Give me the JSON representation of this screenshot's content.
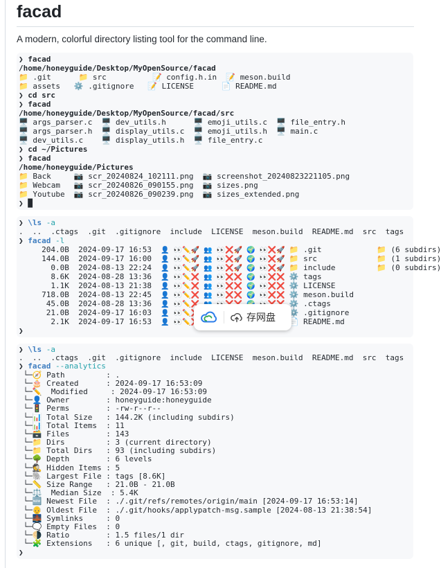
{
  "header": {
    "title": "facad",
    "tagline": "A modern, colorful directory listing tool for the command line."
  },
  "colors": {
    "command_blue": "#3f7ec0",
    "flag_teal": "#25a2ab",
    "text": "#24292f",
    "code_background": "#f7f8fa",
    "divider": "#d8dee4"
  },
  "icons": {
    "folder": "📁",
    "memo": "📝",
    "gear": "⚙️",
    "page": "📄",
    "monitor": "🖥️",
    "camera": "📷",
    "owner": "👤",
    "group": "👥",
    "others": "🌍",
    "read": "👀",
    "write": "✏️",
    "execute": "🚀",
    "denied": "❌",
    "compass": "🧭",
    "birthday-cake": "🎂",
    "traffic-light": "🚦",
    "bar-chart": "📊",
    "card-file-box": "🗃️",
    "tree": "🌳",
    "detective": "🕵️",
    "elephant": "🐘",
    "ruler": "📏",
    "scales": "⚖️",
    "new-badge": "🆕",
    "old-man": "👴",
    "bridge": "🌉",
    "speech-bubble": "🗨️",
    "half-moon": "🌗",
    "puzzle": "🧩",
    "netdisk-cloud": "☁️",
    "upload-cloud": "☁️⬆"
  },
  "overlay": {
    "save_label": "存网盘"
  },
  "blocks": [
    {
      "lines": [
        [
          {
            "c": "p",
            "t": "❯ "
          },
          {
            "c": "b",
            "t": "facad"
          }
        ],
        [
          {
            "c": "b",
            "t": "/home/honeyguide/Desktop/MyOpenSource/facad"
          }
        ],
        [
          {
            "c": "n",
            "t": "📁 .git      📁 src          📝 config.h.in  📝 meson.build"
          }
        ],
        [
          {
            "c": "n",
            "t": "📁 assets   ⚙️ .gitignore   📝 LICENSE      📄 README.md"
          }
        ],
        [
          {
            "c": "p",
            "t": "❯ "
          },
          {
            "c": "b",
            "t": "cd src"
          }
        ],
        [
          {
            "c": "p",
            "t": "❯ "
          },
          {
            "c": "b",
            "t": "facad"
          }
        ],
        [
          {
            "c": "b",
            "t": "/home/honeyguide/Desktop/MyOpenSource/facad/src"
          }
        ],
        [
          {
            "c": "n",
            "t": "🖥️ args_parser.c  🖥️ dev_utils.h      🖥️ emoji_utils.c  🖥️ file_entry.h"
          }
        ],
        [
          {
            "c": "n",
            "t": "🖥️ args_parser.h  🖥️ display_utils.c  🖥️ emoji_utils.h  🖥️ main.c"
          }
        ],
        [
          {
            "c": "n",
            "t": "🖥️ dev_utils.c    🖥️ display_utils.h  🖥️ file_entry.c"
          }
        ],
        [
          {
            "c": "p",
            "t": "❯ "
          },
          {
            "c": "b",
            "t": "cd ~/Pictures"
          }
        ],
        [
          {
            "c": "p",
            "t": "❯ "
          },
          {
            "c": "b",
            "t": "facad"
          }
        ],
        [
          {
            "c": "b",
            "t": "/home/honeyguide/Pictures"
          }
        ],
        [
          {
            "c": "n",
            "t": "📁 Back     📷 scr_20240824_102111.png  📷 screenshot_20240823221105.png"
          }
        ],
        [
          {
            "c": "n",
            "t": "📁 Webcam   📷 scr_20240826_090155.png  📷 sizes.png"
          }
        ],
        [
          {
            "c": "n",
            "t": "📁 Youtube  📷 scr_20240826_090239.png  📷 sizes_extended.png"
          }
        ],
        [
          {
            "c": "p",
            "t": "❯ "
          },
          {
            "c": "n",
            "t": "█"
          }
        ]
      ]
    },
    {
      "lines": [
        [
          {
            "c": "p",
            "t": "❯ "
          },
          {
            "c": "c",
            "t": "\\ls"
          },
          {
            "c": "n",
            "t": " "
          },
          {
            "c": "f",
            "t": "-a"
          }
        ],
        [
          {
            "c": "n",
            "t": ".  ..  .ctags  .git  .gitignore  include  LICENSE  meson.build  README.md  src  tags"
          }
        ],
        [
          {
            "c": "p",
            "t": "❯ "
          },
          {
            "c": "c",
            "t": "facad"
          },
          {
            "c": "n",
            "t": " "
          },
          {
            "c": "f",
            "t": "-l"
          }
        ],
        [
          {
            "c": "n",
            "t": "     204.0B  2024-09-17 16:53  "
          },
          {
            "c": "e",
            "t": "👤 👀✏️🚀 👥 👀❌🚀 🌍 👀❌🚀 "
          },
          {
            "c": "n",
            "t": "📁 .git            📁 (6 subdirs)"
          }
        ],
        [
          {
            "c": "n",
            "t": "     144.0B  2024-09-17 16:00  "
          },
          {
            "c": "e",
            "t": "👤 👀✏️🚀 👥 👀❌🚀 🌍 👀❌🚀 "
          },
          {
            "c": "n",
            "t": "📁 src             📁 (1 subdirs)"
          }
        ],
        [
          {
            "c": "n",
            "t": "       0.0B  2024-08-13 22:24  "
          },
          {
            "c": "e",
            "t": "👤 👀✏️🚀 👥 👀❌🚀 🌍 👀❌🚀 "
          },
          {
            "c": "n",
            "t": "📁 include         📁 (0 subdirs)"
          }
        ],
        [
          {
            "c": "n",
            "t": "       8.6K  2024-08-28 13:36  "
          },
          {
            "c": "e",
            "t": "👤 👀✏️❌ 👥 👀❌❌ 🌍 👀❌❌ "
          },
          {
            "c": "n",
            "t": "⚙️ tags"
          }
        ],
        [
          {
            "c": "n",
            "t": "       1.1K  2024-08-13 21:38  "
          },
          {
            "c": "e",
            "t": "👤 👀✏️❌ 👥 👀❌❌ 🌍 👀❌❌ "
          },
          {
            "c": "n",
            "t": "⚙️ LICENSE"
          }
        ],
        [
          {
            "c": "n",
            "t": "     718.0B  2024-08-13 22:45  "
          },
          {
            "c": "e",
            "t": "👤 👀✏️❌ 👥 👀❌❌ 🌍 👀❌❌ "
          },
          {
            "c": "n",
            "t": "⚙️ meson.build"
          }
        ],
        [
          {
            "c": "n",
            "t": "      45.0B  2024-08-28 13:36  "
          },
          {
            "c": "e",
            "t": "👤 👀✏️❌ 👥 👀❌❌ 🌍 👀❌❌ "
          },
          {
            "c": "n",
            "t": "⚙️ .ctags"
          }
        ],
        [
          {
            "c": "n",
            "t": "      21.0B  2024-09-17 16:03  "
          },
          {
            "c": "e",
            "t": "👤 👀✏️❌ 👥 👀❌❌ 🌍 👀❌❌ "
          },
          {
            "c": "n",
            "t": "⚙️ .gitignore"
          }
        ],
        [
          {
            "c": "n",
            "t": "       2.1K  2024-09-17 16:53  "
          },
          {
            "c": "e",
            "t": "👤 👀✏️❌ 👥 👀❌❌ 🌍 👀❌❌ "
          },
          {
            "c": "n",
            "t": "📄 README.md"
          }
        ],
        [
          {
            "c": "p",
            "t": "❯"
          }
        ]
      ]
    },
    {
      "lines": [
        [
          {
            "c": "p",
            "t": "❯ "
          },
          {
            "c": "c",
            "t": "\\ls"
          },
          {
            "c": "n",
            "t": " "
          },
          {
            "c": "f",
            "t": "-a"
          }
        ],
        [
          {
            "c": "n",
            "t": ".  ..  .ctags  .git  .gitignore  include  LICENSE  meson.build  README.md  src  tags"
          }
        ],
        [
          {
            "c": "p",
            "t": "❯ "
          },
          {
            "c": "c",
            "t": "facad"
          },
          {
            "c": "n",
            "t": " "
          },
          {
            "c": "f",
            "t": "--analytics"
          }
        ],
        [
          {
            "c": "n",
            "t": " └─🧭 Path         : ."
          }
        ],
        [
          {
            "c": "n",
            "t": " └─🎂 Created      : 2024-09-17 16:53:09"
          }
        ],
        [
          {
            "c": "n",
            "t": " └─✏️  Modified     : 2024-09-17 16:53:09"
          }
        ],
        [
          {
            "c": "n",
            "t": " └─👤 Owner        : honeyguide:honeyguide"
          }
        ],
        [
          {
            "c": "n",
            "t": " └─🚦 Perms        : -rw-r--r--"
          }
        ],
        [
          {
            "c": "n",
            "t": " └─📊 Total Size   : 144.2K (including subdirs)"
          }
        ],
        [
          {
            "c": "n",
            "t": " └─📊 Total Items  : 11"
          }
        ],
        [
          {
            "c": "n",
            "t": " └─🗃️ Files        : 143"
          }
        ],
        [
          {
            "c": "n",
            "t": " └─📁 Dirs         : 3 (current directory)"
          }
        ],
        [
          {
            "c": "n",
            "t": " └─📁 Total Dirs   : 93 (including subdirs)"
          }
        ],
        [
          {
            "c": "n",
            "t": " └─🌳 Depth        : 6 levels"
          }
        ],
        [
          {
            "c": "n",
            "t": " └─🕵️ Hidden Items : 5"
          }
        ],
        [
          {
            "c": "n",
            "t": " └─🐘 Largest File : tags [8.6K]"
          }
        ],
        [
          {
            "c": "n",
            "t": " └─📏 Size Range   : 21.0B - 21.0B"
          }
        ],
        [
          {
            "c": "n",
            "t": " └─⚖️  Median Size  : 5.4K"
          }
        ],
        [
          {
            "c": "n",
            "t": " └─🆕 Newest File  : ./.git/refs/remotes/origin/main [2024-09-17 16:53:14]"
          }
        ],
        [
          {
            "c": "n",
            "t": " └─👴 Oldest File  : ./.git/hooks/applypatch-msg.sample [2024-08-13 21:38:54]"
          }
        ],
        [
          {
            "c": "n",
            "t": " └─🌉 Symlinks     : 0"
          }
        ],
        [
          {
            "c": "n",
            "t": " └─🗨️ Empty Files  : 0"
          }
        ],
        [
          {
            "c": "n",
            "t": " └─🌗 Ratio        : 1.5 files/1 dir"
          }
        ],
        [
          {
            "c": "n",
            "t": " └─🧩 Extensions   : 6 unique [, git, build, ctags, gitignore, md]"
          }
        ],
        [
          {
            "c": "p",
            "t": "❯"
          }
        ]
      ]
    }
  ]
}
